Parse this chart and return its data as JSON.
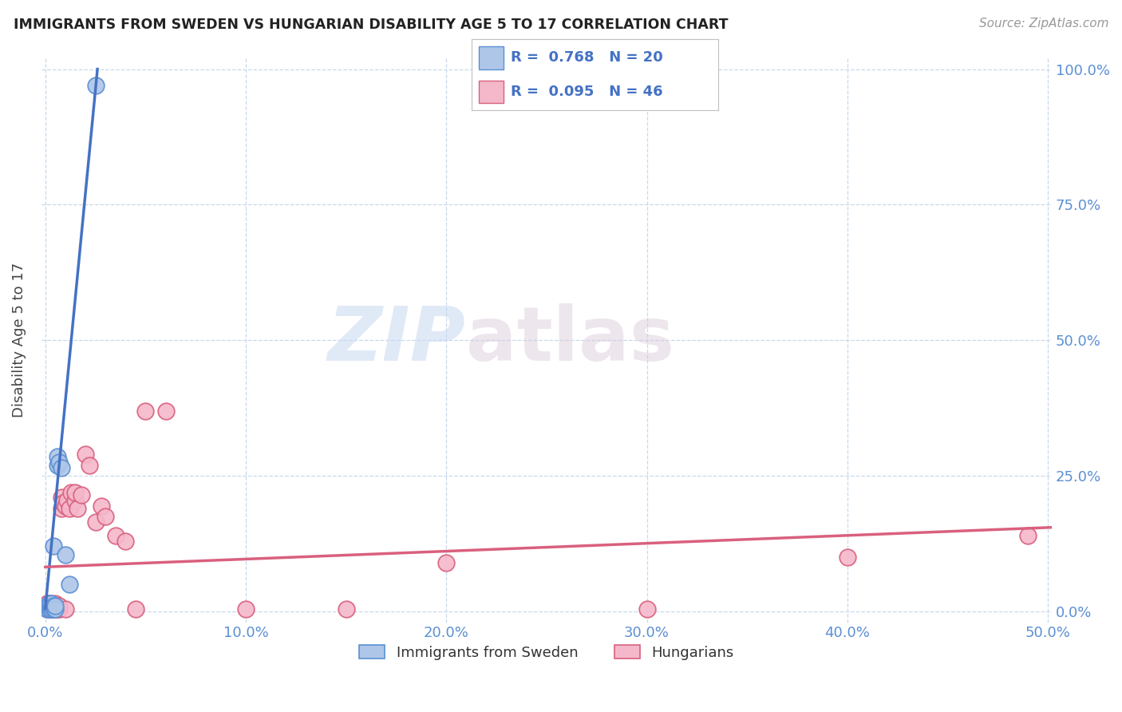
{
  "title": "IMMIGRANTS FROM SWEDEN VS HUNGARIAN DISABILITY AGE 5 TO 17 CORRELATION CHART",
  "source": "Source: ZipAtlas.com",
  "ylabel": "Disability Age 5 to 17",
  "watermark_zip": "ZIP",
  "watermark_atlas": "atlas",
  "blue_R": "0.768",
  "blue_N": "20",
  "pink_R": "0.095",
  "pink_N": "46",
  "legend_label_blue": "Immigrants from Sweden",
  "legend_label_pink": "Hungarians",
  "blue_color": "#aec6e8",
  "blue_edge_color": "#5b8fd4",
  "pink_color": "#f5b8cb",
  "pink_edge_color": "#d9607e",
  "blue_line_color": "#4472c4",
  "pink_line_color": "#d9607e",
  "xlim": [
    -0.002,
    0.502
  ],
  "ylim": [
    -0.02,
    1.02
  ],
  "xtick_positions": [
    0.0,
    0.1,
    0.2,
    0.3,
    0.4,
    0.5
  ],
  "xtick_labels": [
    "0.0%",
    "10.0%",
    "20.0%",
    "30.0%",
    "40.0%",
    "50.0%"
  ],
  "ytick_positions": [
    0.0,
    0.25,
    0.5,
    0.75,
    1.0
  ],
  "ytick_labels": [
    "0.0%",
    "25.0%",
    "50.0%",
    "75.0%",
    "100.0%"
  ],
  "blue_scatter_x": [
    0.001,
    0.001,
    0.002,
    0.002,
    0.002,
    0.003,
    0.003,
    0.003,
    0.004,
    0.004,
    0.004,
    0.005,
    0.005,
    0.006,
    0.006,
    0.007,
    0.008,
    0.01,
    0.012,
    0.025
  ],
  "blue_scatter_y": [
    0.005,
    0.01,
    0.005,
    0.01,
    0.015,
    0.005,
    0.01,
    0.015,
    0.005,
    0.01,
    0.12,
    0.005,
    0.01,
    0.27,
    0.285,
    0.275,
    0.265,
    0.105,
    0.05,
    0.97
  ],
  "pink_scatter_x": [
    0.001,
    0.001,
    0.001,
    0.002,
    0.002,
    0.002,
    0.003,
    0.003,
    0.003,
    0.004,
    0.004,
    0.005,
    0.005,
    0.005,
    0.006,
    0.006,
    0.007,
    0.007,
    0.008,
    0.008,
    0.009,
    0.01,
    0.01,
    0.011,
    0.012,
    0.013,
    0.015,
    0.015,
    0.016,
    0.018,
    0.02,
    0.022,
    0.025,
    0.028,
    0.03,
    0.035,
    0.04,
    0.045,
    0.05,
    0.06,
    0.1,
    0.15,
    0.2,
    0.3,
    0.4,
    0.49
  ],
  "pink_scatter_y": [
    0.005,
    0.01,
    0.015,
    0.005,
    0.01,
    0.015,
    0.005,
    0.01,
    0.015,
    0.005,
    0.01,
    0.005,
    0.01,
    0.015,
    0.005,
    0.01,
    0.005,
    0.01,
    0.19,
    0.21,
    0.2,
    0.005,
    0.195,
    0.205,
    0.19,
    0.22,
    0.205,
    0.22,
    0.19,
    0.215,
    0.29,
    0.27,
    0.165,
    0.195,
    0.175,
    0.14,
    0.13,
    0.005,
    0.37,
    0.37,
    0.005,
    0.005,
    0.09,
    0.005,
    0.1,
    0.14
  ],
  "blue_trendline_x": [
    0.0,
    0.026
  ],
  "blue_trendline_y": [
    0.006,
    1.0
  ],
  "pink_trendline_x": [
    0.0,
    0.502
  ],
  "pink_trendline_y": [
    0.082,
    0.155
  ]
}
